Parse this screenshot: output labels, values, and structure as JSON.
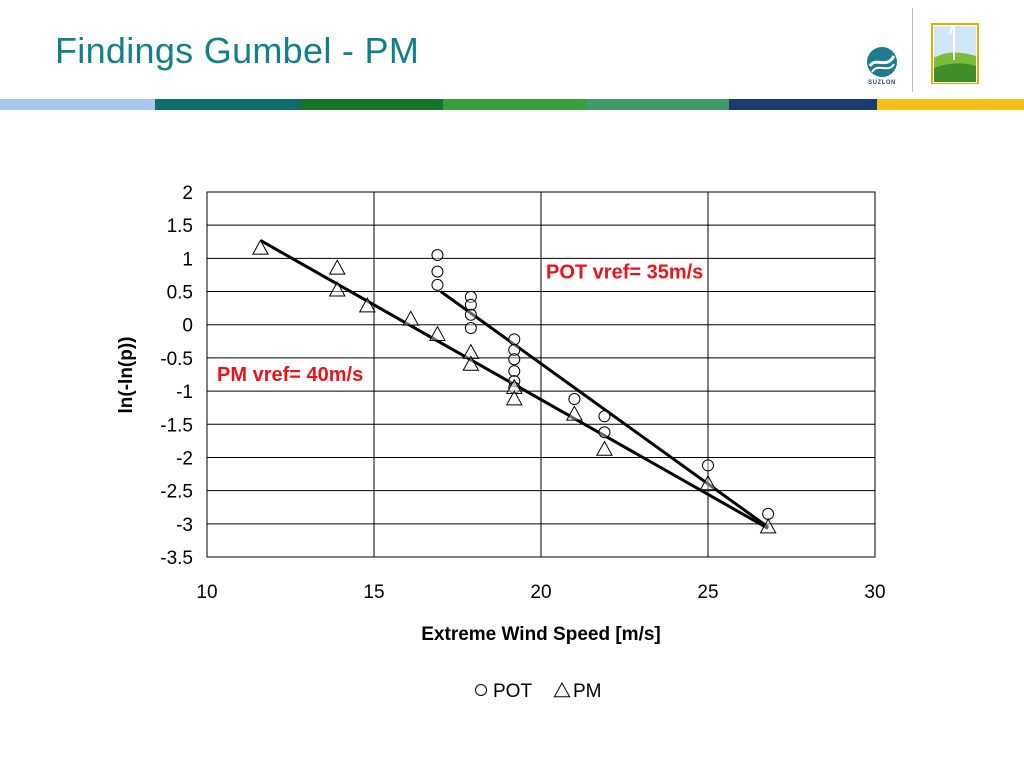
{
  "slide": {
    "title": "Findings Gumbel - PM",
    "brand": "SUZLON",
    "bar_colors": [
      "#a6c8ec",
      "#0f6d6d",
      "#16752a",
      "#3a9c3a",
      "#3e9a66",
      "#1d3c6e",
      "#f3c018"
    ]
  },
  "chart_data": {
    "type": "scatter",
    "xlabel": "Extreme Wind Speed [m/s]",
    "ylabel": "ln(-ln(p))",
    "xlim": [
      10,
      30
    ],
    "ylim": [
      -3.5,
      2
    ],
    "xticks": [
      "10",
      "15",
      "20",
      "25",
      "30"
    ],
    "yticks": [
      "2",
      "1.5",
      "1",
      "0.5",
      "0",
      "-0.5",
      "-1",
      "-1.5",
      "-2",
      "-2.5",
      "-3",
      "-3.5"
    ],
    "grid": true,
    "legend_position": "bottom",
    "series": [
      {
        "name": "POT",
        "marker": "circle",
        "points": [
          [
            16.9,
            1.05
          ],
          [
            16.9,
            0.8
          ],
          [
            16.9,
            0.6
          ],
          [
            17.9,
            0.42
          ],
          [
            17.9,
            0.3
          ],
          [
            17.9,
            0.15
          ],
          [
            17.9,
            -0.05
          ],
          [
            19.2,
            -0.22
          ],
          [
            19.2,
            -0.38
          ],
          [
            19.2,
            -0.52
          ],
          [
            19.2,
            -0.7
          ],
          [
            19.2,
            -0.85
          ],
          [
            19.2,
            -0.95
          ],
          [
            21.0,
            -1.12
          ],
          [
            21.9,
            -1.38
          ],
          [
            21.9,
            -1.62
          ],
          [
            25.0,
            -2.12
          ],
          [
            26.8,
            -2.85
          ]
        ],
        "fit": [
          [
            17.0,
            0.5
          ],
          [
            26.8,
            -3.05
          ]
        ]
      },
      {
        "name": "PM",
        "marker": "triangle",
        "points": [
          [
            11.6,
            1.15
          ],
          [
            13.9,
            0.85
          ],
          [
            13.9,
            0.52
          ],
          [
            14.8,
            0.28
          ],
          [
            16.1,
            0.08
          ],
          [
            16.9,
            -0.15
          ],
          [
            17.9,
            -0.42
          ],
          [
            17.9,
            -0.6
          ],
          [
            19.2,
            -0.95
          ],
          [
            19.2,
            -1.12
          ],
          [
            21.0,
            -1.35
          ],
          [
            21.9,
            -1.88
          ],
          [
            25.0,
            -2.4
          ],
          [
            26.8,
            -3.05
          ]
        ],
        "fit": [
          [
            11.6,
            1.27
          ],
          [
            26.8,
            -3.07
          ]
        ]
      }
    ],
    "annotations": [
      {
        "text": "POT vref= 35m/s",
        "at": [
          20.15,
          0.7
        ]
      },
      {
        "text": "PM vref= 40m/s",
        "at": [
          10.3,
          -0.85
        ]
      }
    ]
  }
}
